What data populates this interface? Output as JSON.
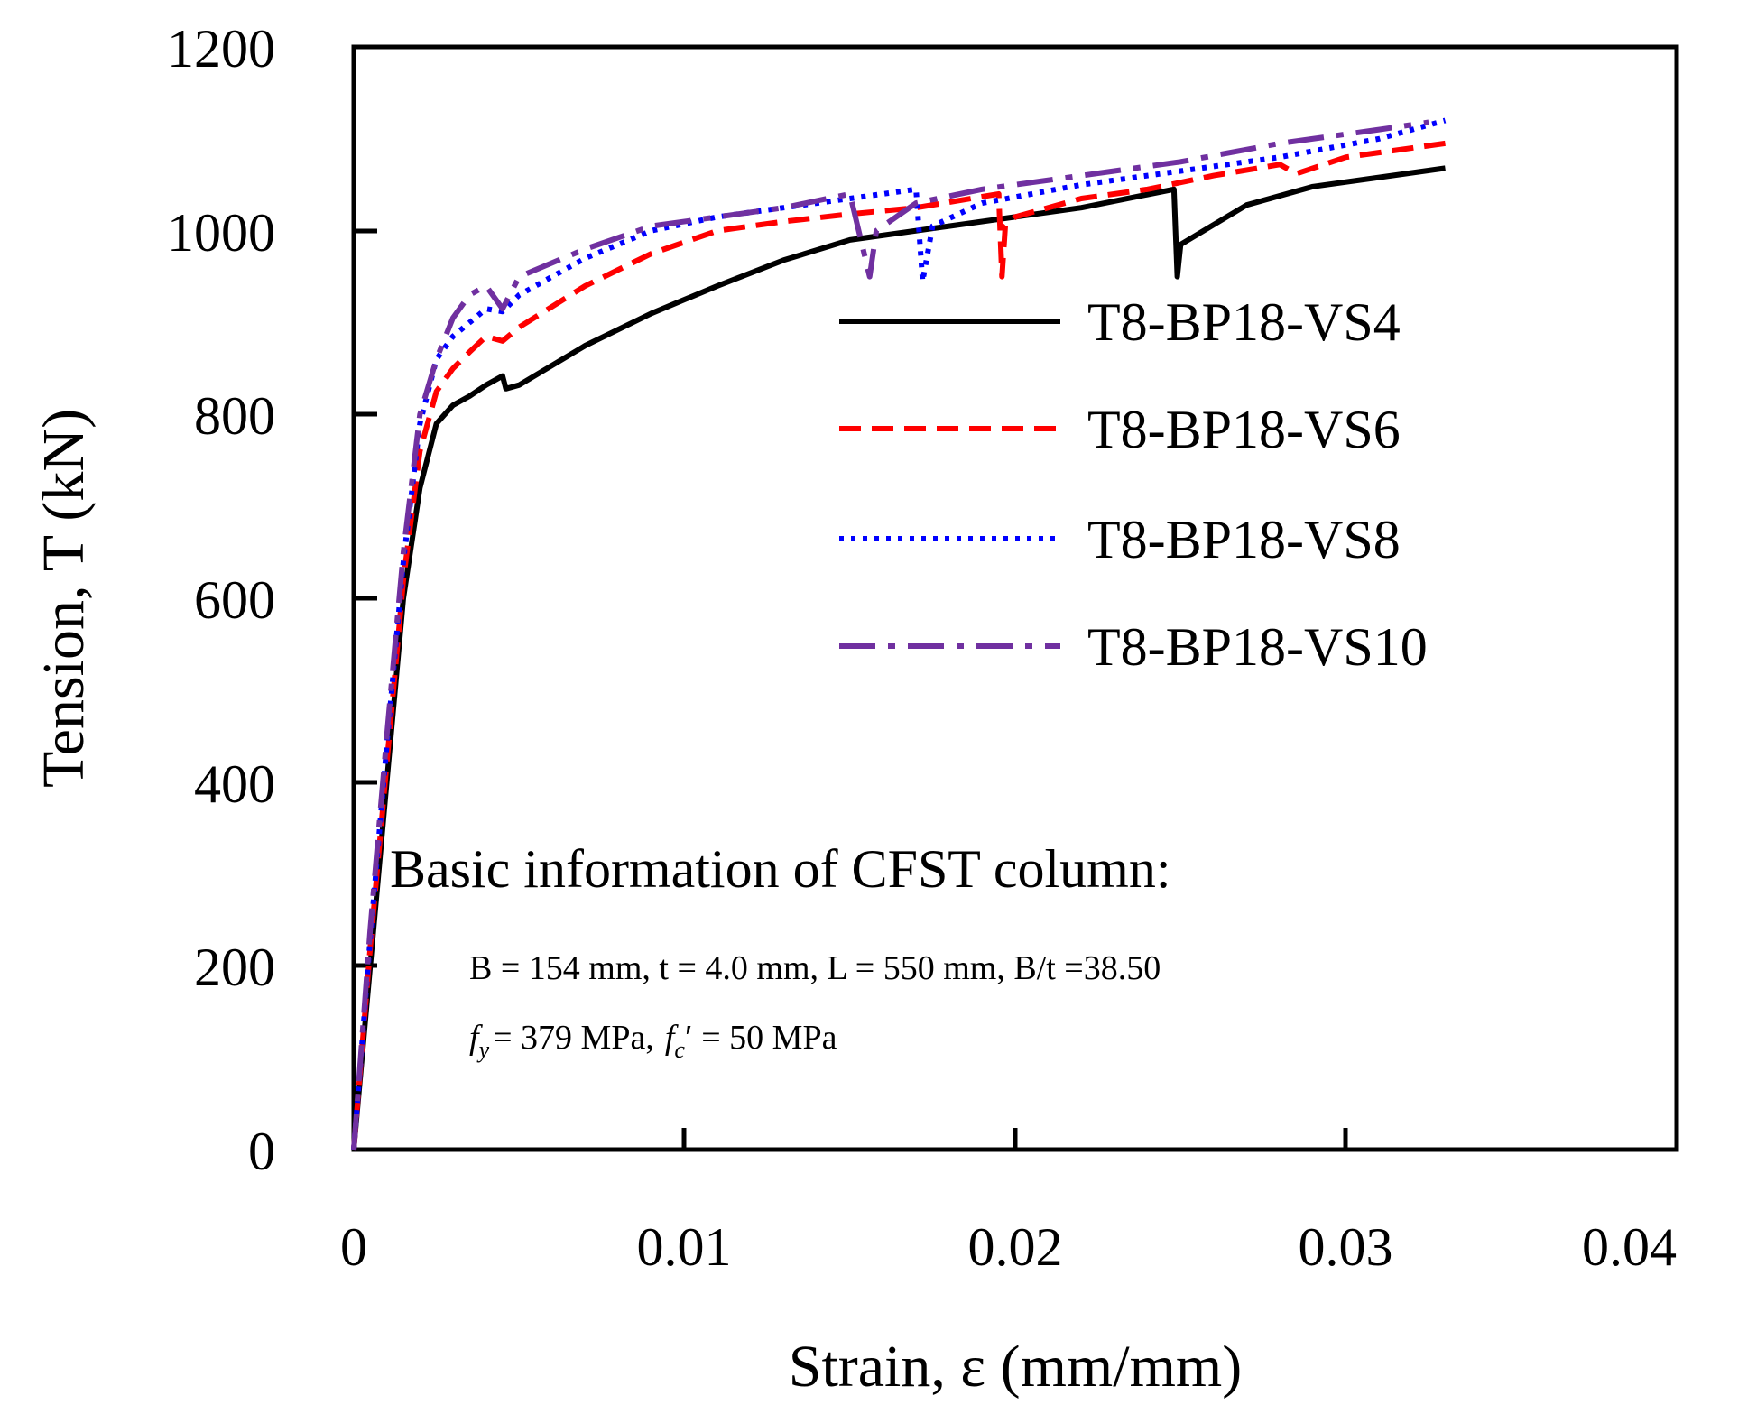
{
  "chart_data": {
    "type": "line",
    "xlabel": "Strain, ε (mm/mm)",
    "ylabel": "Tension, T (kN)",
    "xlim": [
      0,
      0.04
    ],
    "ylim": [
      0,
      1200
    ],
    "x_ticks": [
      "0",
      "0.01",
      "0.02",
      "0.03",
      "0.04"
    ],
    "y_ticks": [
      "0",
      "200",
      "400",
      "600",
      "800",
      "1000",
      "1200"
    ],
    "grid": false,
    "legend_position": "right-middle",
    "series": [
      {
        "name": "T8-BP18-VS4",
        "color": "#000000",
        "style": "solid",
        "points": [
          [
            0,
            0
          ],
          [
            0.0005,
            200
          ],
          [
            0.001,
            400
          ],
          [
            0.0015,
            600
          ],
          [
            0.002,
            720
          ],
          [
            0.0025,
            790
          ],
          [
            0.003,
            810
          ],
          [
            0.0035,
            820
          ],
          [
            0.004,
            832
          ],
          [
            0.0045,
            842
          ],
          [
            0.0046,
            828
          ],
          [
            0.005,
            832
          ],
          [
            0.007,
            875
          ],
          [
            0.009,
            910
          ],
          [
            0.011,
            940
          ],
          [
            0.013,
            968
          ],
          [
            0.015,
            990
          ],
          [
            0.018,
            1005
          ],
          [
            0.02,
            1015
          ],
          [
            0.022,
            1025
          ],
          [
            0.0248,
            1045
          ],
          [
            0.0249,
            950
          ],
          [
            0.025,
            985
          ],
          [
            0.027,
            1028
          ],
          [
            0.029,
            1048
          ],
          [
            0.031,
            1058
          ],
          [
            0.033,
            1068
          ]
        ]
      },
      {
        "name": "T8-BP18-VS6",
        "color": "#ff0000",
        "style": "dashed",
        "points": [
          [
            0,
            0
          ],
          [
            0.0005,
            220
          ],
          [
            0.001,
            420
          ],
          [
            0.0015,
            620
          ],
          [
            0.002,
            760
          ],
          [
            0.0025,
            825
          ],
          [
            0.003,
            850
          ],
          [
            0.0035,
            868
          ],
          [
            0.004,
            885
          ],
          [
            0.0045,
            880
          ],
          [
            0.005,
            895
          ],
          [
            0.007,
            940
          ],
          [
            0.009,
            975
          ],
          [
            0.011,
            1000
          ],
          [
            0.013,
            1010
          ],
          [
            0.015,
            1018
          ],
          [
            0.017,
            1025
          ],
          [
            0.0195,
            1040
          ],
          [
            0.0196,
            950
          ],
          [
            0.0197,
            1005
          ],
          [
            0.02,
            1015
          ],
          [
            0.022,
            1035
          ],
          [
            0.024,
            1045
          ],
          [
            0.026,
            1060
          ],
          [
            0.028,
            1072
          ],
          [
            0.0285,
            1062
          ],
          [
            0.03,
            1080
          ],
          [
            0.033,
            1095
          ]
        ]
      },
      {
        "name": "T8-BP18-VS8",
        "color": "#0000ff",
        "style": "dotted",
        "points": [
          [
            0,
            0
          ],
          [
            0.0005,
            230
          ],
          [
            0.001,
            440
          ],
          [
            0.0015,
            640
          ],
          [
            0.002,
            790
          ],
          [
            0.0025,
            860
          ],
          [
            0.003,
            885
          ],
          [
            0.0035,
            900
          ],
          [
            0.004,
            915
          ],
          [
            0.0045,
            912
          ],
          [
            0.005,
            930
          ],
          [
            0.007,
            970
          ],
          [
            0.009,
            1000
          ],
          [
            0.011,
            1015
          ],
          [
            0.013,
            1025
          ],
          [
            0.015,
            1035
          ],
          [
            0.017,
            1045
          ],
          [
            0.0172,
            945
          ],
          [
            0.0175,
            1005
          ],
          [
            0.019,
            1030
          ],
          [
            0.022,
            1050
          ],
          [
            0.025,
            1065
          ],
          [
            0.028,
            1080
          ],
          [
            0.031,
            1100
          ],
          [
            0.033,
            1120
          ]
        ]
      },
      {
        "name": "T8-BP18-VS10",
        "color": "#7030a0",
        "style": "dash-dot",
        "points": [
          [
            0,
            0
          ],
          [
            0.0005,
            240
          ],
          [
            0.001,
            450
          ],
          [
            0.0015,
            650
          ],
          [
            0.002,
            800
          ],
          [
            0.0025,
            860
          ],
          [
            0.003,
            905
          ],
          [
            0.0035,
            930
          ],
          [
            0.004,
            940
          ],
          [
            0.0045,
            915
          ],
          [
            0.005,
            950
          ],
          [
            0.007,
            980
          ],
          [
            0.009,
            1005
          ],
          [
            0.011,
            1015
          ],
          [
            0.013,
            1025
          ],
          [
            0.015,
            1040
          ],
          [
            0.0156,
            950
          ],
          [
            0.0158,
            1000
          ],
          [
            0.017,
            1030
          ],
          [
            0.019,
            1045
          ],
          [
            0.022,
            1060
          ],
          [
            0.025,
            1075
          ],
          [
            0.028,
            1095
          ],
          [
            0.031,
            1110
          ],
          [
            0.0325,
            1118
          ]
        ]
      }
    ],
    "annotation": {
      "title": "Basic information of CFST column:",
      "line1": "B = 154 mm, t = 4.0 mm, L = 550 mm, B/t =38.50",
      "fy_symbol": "f",
      "fy_sub": "y",
      "fy_value": "= 379 MPa,",
      "fc_symbol": "f",
      "fc_sub": "c",
      "fc_prime": "′",
      "fc_value": "= 50 MPa"
    }
  }
}
